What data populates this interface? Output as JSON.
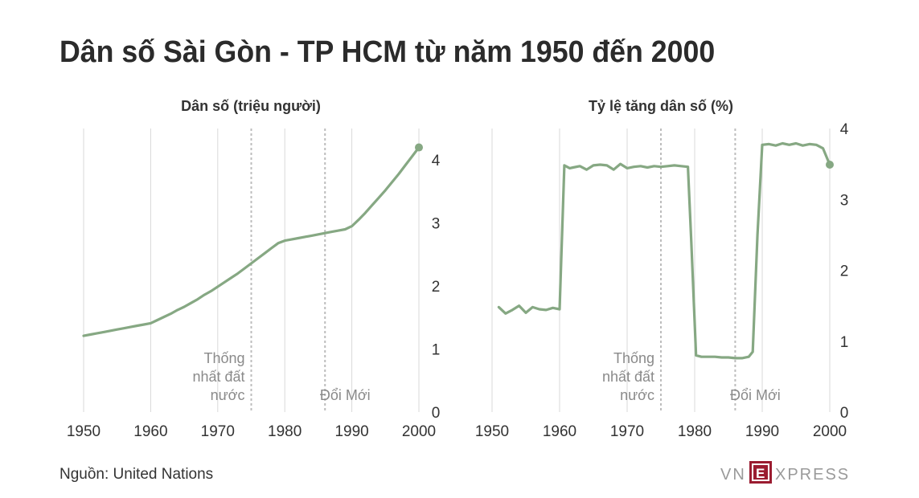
{
  "title": "Dân số Sài Gòn - TP HCM từ năm 1950 đến 2000",
  "source": "Nguồn: United Nations",
  "logo": {
    "left": "VN",
    "mark": "E",
    "right": "XPRESS",
    "color": "#9b1c31"
  },
  "colors": {
    "series": "#86a883",
    "grid": "#d9d9d9",
    "event_line": "#bdbdbd",
    "event_text": "#8a8a8a"
  },
  "chart_data": [
    {
      "type": "line",
      "title": "Dân số (triệu người)",
      "x_ticks": [
        1950,
        1960,
        1970,
        1980,
        1990,
        2000
      ],
      "y_ticks": [
        0,
        1,
        2,
        3,
        4
      ],
      "xlim": [
        1950,
        2000
      ],
      "ylim": [
        0,
        4.5
      ],
      "grid": "vertical lines only at x ticks",
      "x": [
        1950,
        1951,
        1952,
        1953,
        1954,
        1955,
        1956,
        1957,
        1958,
        1959,
        1960,
        1961,
        1962,
        1963,
        1964,
        1965,
        1966,
        1967,
        1968,
        1969,
        1970,
        1971,
        1972,
        1973,
        1974,
        1975,
        1976,
        1977,
        1978,
        1979,
        1980,
        1981,
        1982,
        1983,
        1984,
        1985,
        1986,
        1987,
        1988,
        1989,
        1990,
        1991,
        1992,
        1993,
        1994,
        1995,
        1996,
        1997,
        1998,
        1999,
        2000
      ],
      "y": [
        1.21,
        1.23,
        1.25,
        1.27,
        1.29,
        1.31,
        1.33,
        1.35,
        1.37,
        1.39,
        1.41,
        1.46,
        1.51,
        1.56,
        1.62,
        1.67,
        1.73,
        1.79,
        1.86,
        1.92,
        1.99,
        2.06,
        2.13,
        2.2,
        2.28,
        2.36,
        2.44,
        2.52,
        2.6,
        2.68,
        2.72,
        2.74,
        2.76,
        2.78,
        2.8,
        2.82,
        2.84,
        2.86,
        2.88,
        2.9,
        2.95,
        3.05,
        3.16,
        3.28,
        3.4,
        3.52,
        3.65,
        3.78,
        3.92,
        4.06,
        4.2
      ],
      "events": [
        {
          "year": 1975,
          "label": [
            "Thống",
            "nhất đất",
            "nước"
          ]
        },
        {
          "year": 1986,
          "label": [
            "Đổi Mới"
          ]
        }
      ],
      "end_marker": true
    },
    {
      "type": "line",
      "title": "Tỷ lệ tăng dân số (%)",
      "x_ticks": [
        1950,
        1960,
        1970,
        1980,
        1990,
        2000
      ],
      "y_ticks": [
        0,
        1,
        2,
        3,
        4
      ],
      "xlim": [
        1950,
        2000
      ],
      "ylim": [
        0,
        4
      ],
      "grid": "vertical lines only at x ticks",
      "x": [
        1951,
        1952,
        1953,
        1954,
        1955,
        1956,
        1957,
        1958,
        1959,
        1960,
        1960.7,
        1961.5,
        1962,
        1963,
        1964,
        1965,
        1966,
        1967,
        1968,
        1969,
        1970,
        1971,
        1972,
        1973,
        1974,
        1975,
        1976,
        1977,
        1978,
        1979,
        1979.5,
        1980.2,
        1981,
        1982,
        1983,
        1984,
        1985,
        1986,
        1987,
        1988,
        1988.6,
        1989.3,
        1990,
        1991,
        1992,
        1993,
        1994,
        1995,
        1996,
        1997,
        1998,
        1999,
        2000
      ],
      "y": [
        1.48,
        1.39,
        1.44,
        1.5,
        1.4,
        1.48,
        1.45,
        1.44,
        1.47,
        1.45,
        3.48,
        3.44,
        3.45,
        3.47,
        3.42,
        3.48,
        3.49,
        3.48,
        3.42,
        3.5,
        3.44,
        3.46,
        3.47,
        3.45,
        3.47,
        3.46,
        3.47,
        3.48,
        3.47,
        3.46,
        2.4,
        0.8,
        0.78,
        0.78,
        0.78,
        0.77,
        0.77,
        0.76,
        0.76,
        0.78,
        0.85,
        2.5,
        3.77,
        3.78,
        3.76,
        3.79,
        3.77,
        3.79,
        3.76,
        3.78,
        3.77,
        3.72,
        3.49
      ],
      "events": [
        {
          "year": 1975,
          "label": [
            "Thống",
            "nhất đất",
            "nước"
          ]
        },
        {
          "year": 1986,
          "label": [
            "Đổi Mới"
          ]
        }
      ],
      "end_marker": true
    }
  ]
}
